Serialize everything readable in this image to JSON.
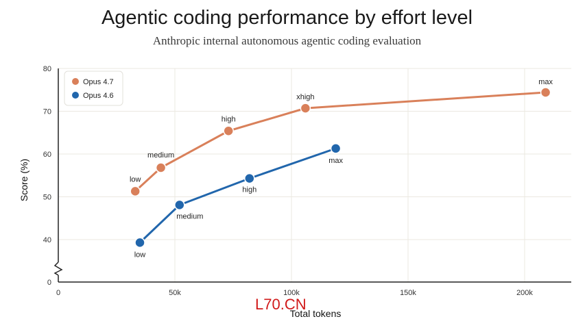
{
  "chart_data": {
    "type": "line",
    "title": "Agentic coding performance by effort level",
    "subtitle": "Anthropic internal autonomous agentic coding evaluation",
    "xlabel": "Total tokens",
    "ylabel": "Score (%)",
    "xlim": [
      0,
      220000
    ],
    "ylim": [
      0,
      80
    ],
    "y_axis_break": true,
    "x_ticks": [
      {
        "value": 0,
        "label": "0"
      },
      {
        "value": 50000,
        "label": "50k"
      },
      {
        "value": 100000,
        "label": "100k"
      },
      {
        "value": 150000,
        "label": "150k"
      },
      {
        "value": 200000,
        "label": "200k"
      }
    ],
    "y_ticks": [
      {
        "value": 0,
        "label": "0"
      },
      {
        "value": 40,
        "label": "40"
      },
      {
        "value": 50,
        "label": "50"
      },
      {
        "value": 60,
        "label": "60"
      },
      {
        "value": 70,
        "label": "70"
      },
      {
        "value": 80,
        "label": "80"
      }
    ],
    "grid": true,
    "legend": {
      "placement": "top-left"
    },
    "series": [
      {
        "name": "Opus 4.7",
        "color": "#d9805a",
        "points": [
          {
            "x": 33000,
            "y": 51.3,
            "label": "low"
          },
          {
            "x": 44000,
            "y": 56.8,
            "label": "medium"
          },
          {
            "x": 73000,
            "y": 65.4,
            "label": "high"
          },
          {
            "x": 106000,
            "y": 70.7,
            "label": "xhigh"
          },
          {
            "x": 209000,
            "y": 74.4,
            "label": "max"
          }
        ]
      },
      {
        "name": "Opus 4.6",
        "color": "#2166ac",
        "points": [
          {
            "x": 35000,
            "y": 39.3,
            "label": "low"
          },
          {
            "x": 52000,
            "y": 48.1,
            "label": "medium"
          },
          {
            "x": 82000,
            "y": 54.3,
            "label": "high"
          },
          {
            "x": 119000,
            "y": 61.3,
            "label": "max"
          }
        ]
      }
    ]
  },
  "watermark": "L70.CN"
}
